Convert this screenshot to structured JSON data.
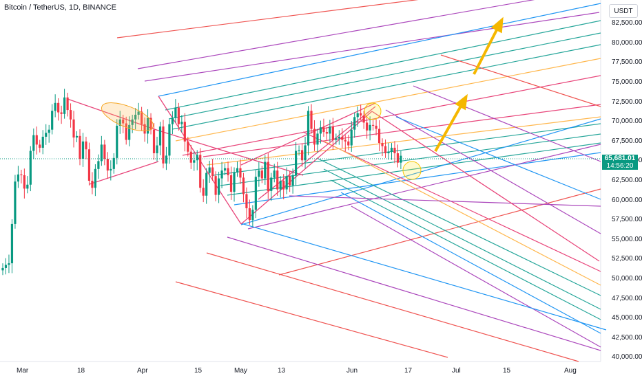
{
  "header": {
    "symbol": "Bitcoin / TetherUS, 1D, BINANCE"
  },
  "price_axis": {
    "currency_button": "USDT"
  },
  "last_price": {
    "value": "65,681.01",
    "countdown": "14:56:20"
  },
  "colors": {
    "up": "#089981",
    "down": "#f23645",
    "pink": "#e8457a",
    "blue": "#2196f3",
    "green": "#26a69a",
    "orange": "#ffb74d",
    "purple": "#ab47bc",
    "red": "#ef5350",
    "arrow": "#f5b700"
  },
  "chart_data": {
    "type": "candlestick",
    "title": "",
    "x_ticks": [
      "Mar",
      "18",
      "Apr",
      "15",
      "May",
      "13",
      "Jun",
      "17",
      "Jul",
      "15",
      "Aug"
    ],
    "y_ticks": [
      "82,500.00",
      "80,000.00",
      "77,500.00",
      "75,000.00",
      "72,500.00",
      "70,000.00",
      "67,500.00",
      "65,000.00",
      "62,500.00",
      "60,000.00",
      "57,500.00",
      "55,000.00",
      "52,500.00",
      "50,000.00",
      "47,500.00",
      "45,000.00",
      "42,500.00",
      "40,000.00"
    ],
    "ylim": [
      39500,
      85500
    ],
    "closes": [
      51400,
      51800,
      52000,
      57000,
      62400,
      63300,
      63200,
      61500,
      62000,
      66300,
      68300,
      67100,
      66700,
      68100,
      68600,
      69000,
      71400,
      72400,
      71200,
      71000,
      73100,
      71500,
      70300,
      68000,
      68200,
      65300,
      67500,
      66500,
      62500,
      61600,
      64000,
      65000,
      67100,
      65300,
      63800,
      64000,
      65400,
      69500,
      70300,
      69800,
      67700,
      69600,
      70300,
      70900,
      71300,
      69700,
      68500,
      70500,
      69000,
      66000,
      67000,
      69400,
      64700,
      65700,
      69700,
      70500,
      71800,
      69700,
      70000,
      67500,
      66200,
      64800,
      65100,
      65800,
      61600,
      60600,
      63500,
      64200,
      63100,
      60700,
      62800,
      63800,
      64100,
      63200,
      61100,
      63600,
      64100,
      62900,
      60800,
      59000,
      57500,
      58800,
      63000,
      63800,
      62800,
      64900,
      61200,
      62900,
      63800,
      61400,
      62500,
      61400,
      63100,
      61900,
      63200,
      66300,
      66400,
      65100,
      67000,
      71400,
      69100,
      67100,
      68500,
      69300,
      68700,
      68500,
      69400,
      67700,
      67900,
      68100,
      67700,
      67500,
      67000,
      69000,
      70600,
      71100,
      70800,
      69900,
      68900,
      69600,
      69500,
      69100,
      67300,
      66900,
      66000,
      66200,
      66700,
      66000,
      64800,
      65681
    ]
  }
}
